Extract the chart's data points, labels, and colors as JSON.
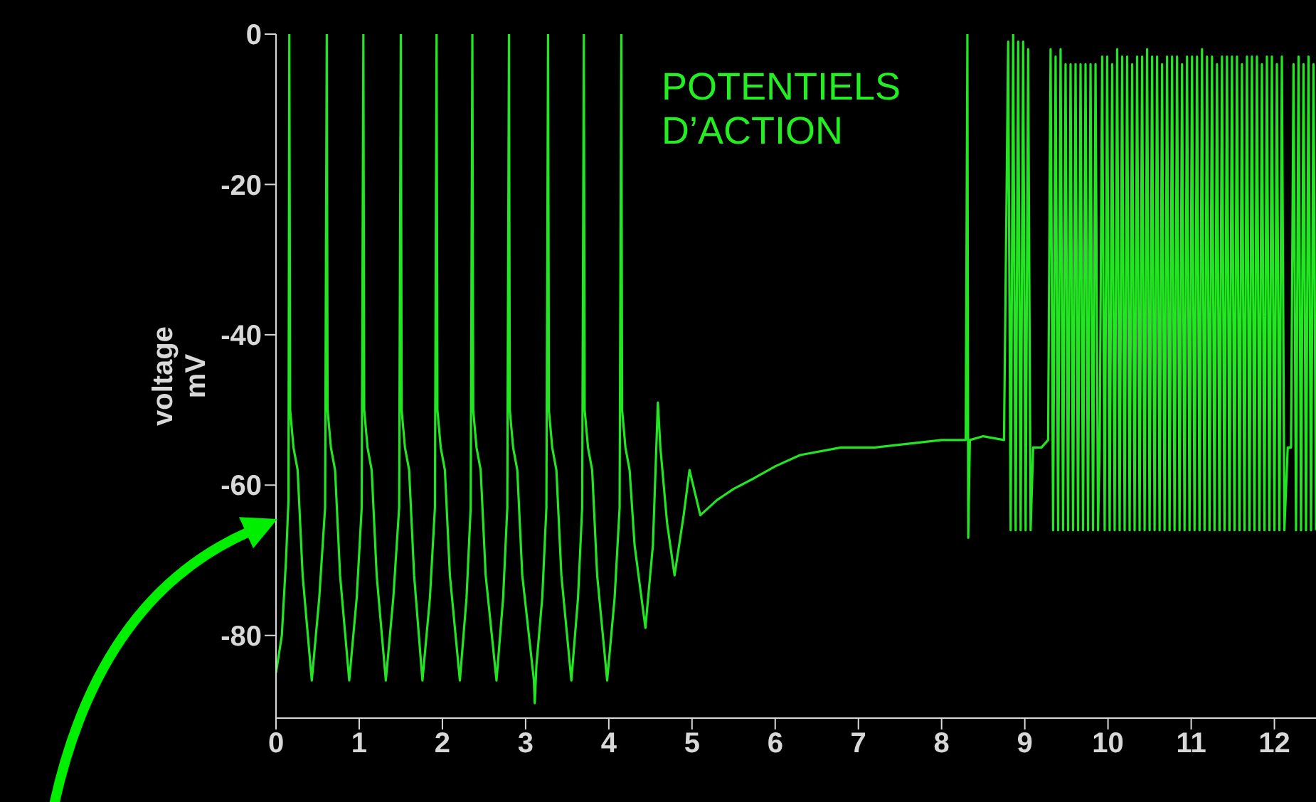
{
  "chart_data": {
    "type": "line",
    "ylabel": "voltage mV",
    "annotations": [
      "POTENTIELS D’ACTION"
    ],
    "color": "#22e622",
    "xlim": [
      0,
      12.5
    ],
    "xticks": [
      0,
      1,
      2,
      3,
      4,
      5,
      6,
      7,
      8,
      9,
      10,
      11,
      12
    ],
    "ylim": [
      -91,
      0
    ],
    "yticks": [
      -80,
      -60,
      -40,
      -20,
      0
    ],
    "x": [
      0,
      0.07,
      0.12,
      0.15,
      0.16,
      0.17,
      0.21,
      0.26,
      0.32,
      0.43,
      0.52,
      0.59,
      0.61,
      0.62,
      0.66,
      0.71,
      0.77,
      0.88,
      0.97,
      1.03,
      1.05,
      1.06,
      1.1,
      1.15,
      1.21,
      1.32,
      1.41,
      1.48,
      1.5,
      1.51,
      1.55,
      1.6,
      1.66,
      1.76,
      1.85,
      1.91,
      1.93,
      1.94,
      1.98,
      2.03,
      2.09,
      2.21,
      2.29,
      2.34,
      2.36,
      2.37,
      2.41,
      2.46,
      2.52,
      2.65,
      2.73,
      2.78,
      2.8,
      2.81,
      2.85,
      2.9,
      2.96,
      3.1,
      3.11,
      3.13,
      3.2,
      3.25,
      3.27,
      3.28,
      3.32,
      3.37,
      3.43,
      3.55,
      3.63,
      3.68,
      3.7,
      3.71,
      3.75,
      3.8,
      3.86,
      3.98,
      4.07,
      4.13,
      4.15,
      4.16,
      4.2,
      4.25,
      4.31,
      4.44,
      4.53,
      4.59,
      4.62,
      4.7,
      4.79,
      4.9,
      4.97,
      5.1,
      5.3,
      5.5,
      5.76,
      6,
      6.3,
      6.79,
      7.2,
      7.6,
      8,
      8.29,
      8.31,
      8.32,
      8.34,
      8.5,
      8.75,
      8.8,
      8.83,
      8.86,
      8.89,
      8.92,
      8.95,
      8.98,
      9.01,
      9.04,
      9.07,
      9.1,
      9.2,
      9.28,
      9.31,
      9.34,
      9.37,
      9.4,
      9.43,
      9.46,
      9.49,
      9.52,
      9.55,
      9.58,
      9.61,
      9.64,
      9.67,
      9.7,
      9.73,
      9.76,
      9.79,
      9.82,
      9.85,
      9.88,
      9.9,
      9.93,
      9.96,
      9.99,
      10.02,
      10.05,
      10.08,
      10.11,
      10.14,
      10.17,
      10.2,
      10.23,
      10.26,
      10.29,
      10.32,
      10.35,
      10.38,
      10.41,
      10.44,
      10.47,
      10.5,
      10.53,
      10.56,
      10.59,
      10.62,
      10.65,
      10.68,
      10.71,
      10.74,
      10.77,
      10.8,
      10.83,
      10.86,
      10.89,
      10.92,
      10.95,
      10.98,
      11.01,
      11.04,
      11.07,
      11.1,
      11.13,
      11.16,
      11.19,
      11.22,
      11.25,
      11.28,
      11.31,
      11.34,
      11.37,
      11.4,
      11.43,
      11.46,
      11.49,
      11.52,
      11.55,
      11.58,
      11.61,
      11.64,
      11.67,
      11.7,
      11.73,
      11.76,
      11.79,
      11.82,
      11.85,
      11.88,
      11.91,
      11.94,
      11.97,
      12,
      12.03,
      12.06,
      12.09,
      12.12,
      12.16,
      12.2,
      12.23,
      12.26,
      12.29,
      12.32,
      12.35,
      12.38,
      12.41,
      12.44,
      12.47,
      12.5
    ],
    "values": [
      -85,
      -80,
      -70,
      -62,
      0,
      -50,
      -55,
      -58,
      -72,
      -86,
      -75,
      -63,
      0,
      -50,
      -55,
      -58,
      -72,
      -86,
      -75,
      -63,
      0,
      -50,
      -55,
      -58,
      -72,
      -86,
      -75,
      -63,
      0,
      -50,
      -55,
      -58,
      -72,
      -86,
      -75,
      -63,
      0,
      -50,
      -55,
      -58,
      -72,
      -86,
      -75,
      -63,
      0,
      -50,
      -55,
      -58,
      -72,
      -86,
      -75,
      -63,
      0,
      -50,
      -55,
      -58,
      -72,
      -86,
      -89,
      -84,
      -75,
      -63,
      0,
      -50,
      -55,
      -58,
      -72,
      -86,
      -75,
      -63,
      0,
      -50,
      -55,
      -58,
      -72,
      -86,
      -75,
      -63,
      0,
      -50,
      -55,
      -58,
      -68,
      -79,
      -68,
      -49,
      -55,
      -65,
      -72,
      -64,
      -58,
      -64,
      -62,
      -60.5,
      -59,
      -57.5,
      -56,
      -55,
      -55,
      -54.5,
      -54,
      -54,
      0,
      -67,
      -54,
      -53.5,
      -54,
      -1,
      -66,
      0,
      -66,
      -1,
      -66,
      -1,
      -66,
      -2,
      -66,
      -55,
      -55,
      -54,
      -2,
      -66,
      -3,
      -66,
      -2,
      -66,
      -4,
      -66,
      -4,
      -66,
      -4,
      -66,
      -4,
      -66,
      -4,
      -66,
      -4,
      -66,
      -4,
      -66,
      -55,
      -3,
      -66,
      -3,
      -66,
      -4,
      -66,
      -2,
      -66,
      -3,
      -66,
      -3,
      -66,
      -4,
      -66,
      -3,
      -66,
      -3,
      -66,
      -2,
      -66,
      -3,
      -66,
      -3,
      -66,
      -4,
      -66,
      -3,
      -66,
      -3,
      -66,
      -3,
      -66,
      -4,
      -66,
      -3,
      -66,
      -3,
      -66,
      -3,
      -66,
      -2,
      -66,
      -3,
      -66,
      -3,
      -66,
      -4,
      -66,
      -3,
      -66,
      -3,
      -66,
      -3,
      -66,
      -3,
      -66,
      -4,
      -66,
      -3,
      -66,
      -3,
      -66,
      -3,
      -66,
      -4,
      -66,
      -3,
      -66,
      -3,
      -66,
      -4,
      -66,
      -3,
      -66,
      -55,
      -55,
      -4,
      -66,
      -3,
      -66,
      -4,
      -66,
      -3,
      -66,
      -4,
      -66
    ]
  }
}
